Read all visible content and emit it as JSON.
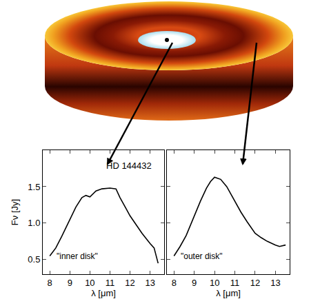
{
  "chart_data": [
    {
      "type": "line",
      "title": "HD 144432",
      "annotation": "\"inner disk\"",
      "x_label": "λ [μm]",
      "y_label": "Fν [Jy]",
      "x": [
        8.0,
        8.3,
        8.6,
        9.0,
        9.3,
        9.6,
        9.8,
        10.0,
        10.3,
        10.6,
        11.0,
        11.3,
        11.5,
        11.8,
        12.0,
        12.3,
        12.6,
        13.0,
        13.2,
        13.4
      ],
      "values": [
        0.55,
        0.66,
        0.82,
        1.05,
        1.22,
        1.35,
        1.38,
        1.36,
        1.44,
        1.47,
        1.48,
        1.47,
        1.35,
        1.2,
        1.1,
        0.98,
        0.86,
        0.72,
        0.66,
        0.45
      ],
      "color": "#000000",
      "grid": false,
      "tick_labels": true,
      "xlim": [
        7.65,
        13.7
      ],
      "ylim": [
        0.3,
        2.0
      ],
      "xticks": [
        8,
        9,
        10,
        11,
        12,
        13
      ],
      "yticks": [
        0.5,
        {
          "value": 1,
          "label": "1.0"
        },
        1.5
      ]
    },
    {
      "type": "line",
      "annotation": "\"outer disk\"",
      "x_label": "λ [μm]",
      "x": [
        8.0,
        8.3,
        8.6,
        9.0,
        9.3,
        9.6,
        9.8,
        10.0,
        10.3,
        10.6,
        11.0,
        11.3,
        11.6,
        12.0,
        12.3,
        12.6,
        13.0,
        13.2,
        13.5
      ],
      "values": [
        0.55,
        0.68,
        0.83,
        1.1,
        1.3,
        1.48,
        1.57,
        1.63,
        1.6,
        1.5,
        1.3,
        1.15,
        1.02,
        0.86,
        0.8,
        0.75,
        0.7,
        0.68,
        0.7
      ],
      "color": "#000000",
      "grid": false,
      "tick_labels": "x",
      "xlim": [
        7.65,
        13.7
      ],
      "ylim": [
        0.3,
        2.0
      ],
      "xticks": [
        8,
        9,
        10,
        11,
        12,
        13
      ],
      "yticks": [
        0.5,
        {
          "value": 1,
          "label": "1.0"
        },
        1.5
      ]
    }
  ]
}
